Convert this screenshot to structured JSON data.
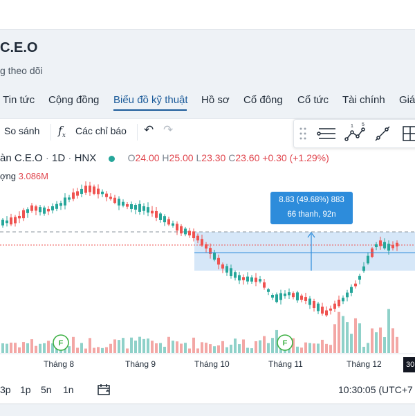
{
  "header": {
    "title": "C.E.O",
    "follow_text": "g theo dõi"
  },
  "tabs": [
    {
      "label": "Tin tức"
    },
    {
      "label": "Cộng đồng"
    },
    {
      "label": "Biểu đồ kỹ thuật"
    },
    {
      "label": "Hồ sơ"
    },
    {
      "label": "Cổ đông"
    },
    {
      "label": "Cổ tức"
    },
    {
      "label": "Tài chính"
    },
    {
      "label": "Giá"
    }
  ],
  "toolbar": {
    "compare_label": "So sánh",
    "indicators_label": "Các chỉ báo"
  },
  "legend": {
    "symbol": "àn C.E.O",
    "interval": "1D",
    "exchange": "HNX",
    "o_label": "O",
    "o_value": "24.00",
    "h_label": "H",
    "h_value": "25.00",
    "l_label": "L",
    "l_value": "23.30",
    "c_label": "C",
    "c_value": "23.60",
    "change": "+0.30 (+1.29%)",
    "volume_label": "ợng",
    "volume_value": "3.086M"
  },
  "tooltip": {
    "line1": "8.83 (49.68%) 883",
    "line2": "66 thanh, 92n"
  },
  "axis": {
    "months": [
      "Tháng 8",
      "Tháng 9",
      "Tháng 10",
      "Tháng 11",
      "Tháng 12"
    ],
    "right_badge": "30"
  },
  "bottom": {
    "ranges": [
      "3p",
      "1p",
      "5n",
      "1n"
    ],
    "time": "10:30:05 (UTC+7"
  },
  "colors": {
    "up": "#26a69a",
    "down": "#ef5350",
    "accent": "#1a5a99",
    "measure": "#2d8cdb"
  },
  "icons": [
    "fx-icon",
    "undo-icon",
    "redo-icon",
    "drag-handle-icon",
    "lines-tool-icon",
    "pattern-tool-icon",
    "trendline-tool-icon",
    "crosshair-tool-icon",
    "replay-icon",
    "earnings-marker-icon"
  ],
  "chart_data": {
    "type": "candlestick",
    "price_ranges": {
      "Tháng 8": [
        20.5,
        23.0
      ],
      "Tháng 9": [
        21.0,
        23.0
      ],
      "Tháng 10": [
        17.0,
        20.5
      ],
      "Tháng 11": [
        15.0,
        17.5
      ],
      "Tháng 12": [
        17.5,
        24.5
      ]
    },
    "last": {
      "open": 24.0,
      "high": 25.0,
      "low": 23.3,
      "close": 23.6
    }
  }
}
